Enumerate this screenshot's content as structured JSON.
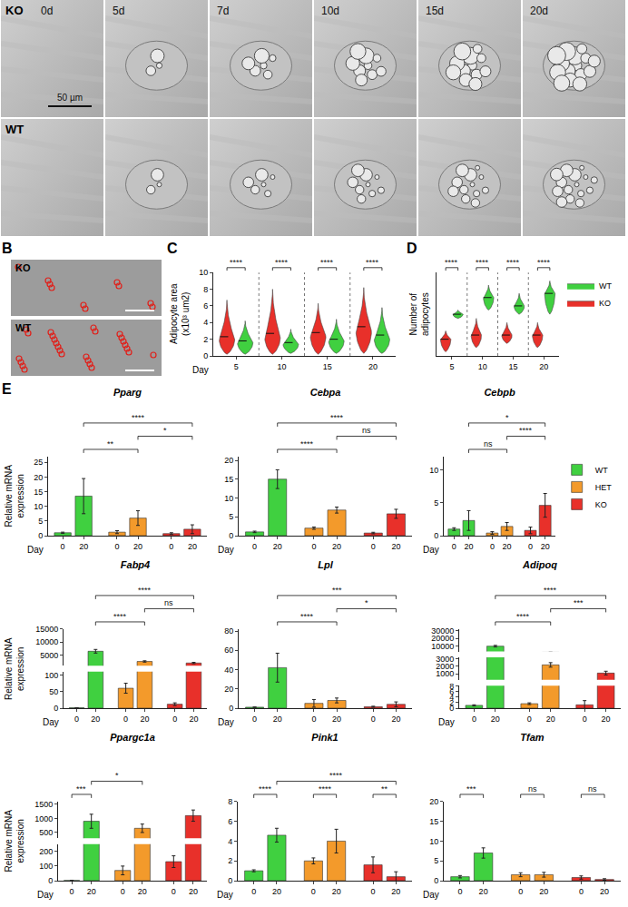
{
  "micrographs": {
    "A": {
      "rows": [
        "KO",
        "WT"
      ],
      "columns": [
        "0d",
        "5d",
        "7d",
        "10d",
        "15d",
        "20d"
      ],
      "scale_bar": "50 µm"
    },
    "B": {
      "panel": "B",
      "rows": [
        "KO",
        "WT"
      ]
    }
  },
  "chart_data": [
    {
      "panel": "C",
      "type": "violin",
      "x_title": "Day",
      "y_title": "Adipocyte area (x10³ um2)",
      "categories": [
        "5",
        "10",
        "15",
        "20"
      ],
      "ylim": [
        0,
        10
      ],
      "yticks": [
        0,
        2,
        4,
        6,
        8,
        10
      ],
      "series": [
        {
          "name": "KO",
          "color": "#e8302a",
          "min": [
            0.2,
            0.2,
            0.2,
            0.3
          ],
          "mode": [
            2.0,
            2.2,
            2.4,
            3.0
          ],
          "median": [
            2.3,
            2.7,
            2.8,
            3.5
          ],
          "max": [
            6.7,
            8.0,
            6.3,
            8.2
          ]
        },
        {
          "name": "WT",
          "color": "#40d040",
          "min": [
            0.2,
            0.3,
            0.3,
            0.3
          ],
          "mode": [
            1.6,
            1.4,
            1.8,
            2.0
          ],
          "median": [
            1.8,
            1.6,
            2.0,
            2.5
          ],
          "max": [
            4.2,
            3.2,
            4.4,
            5.8
          ]
        }
      ],
      "comparisons": [
        {
          "category": "5",
          "text": "****"
        },
        {
          "category": "10",
          "text": "****"
        },
        {
          "category": "15",
          "text": "****"
        },
        {
          "category": "20",
          "text": "****"
        }
      ]
    },
    {
      "panel": "D",
      "type": "violin",
      "y_title": "Number of adipocytes",
      "categories": [
        "5",
        "10",
        "15",
        "20"
      ],
      "ylim": [
        0,
        20
      ],
      "tick_labels": "x",
      "legend": "right",
      "series": [
        {
          "name": "KO",
          "color": "#e8302a",
          "min": [
            1,
            2,
            3,
            2
          ],
          "mode": [
            4,
            5,
            5,
            5
          ],
          "median": [
            4,
            5,
            5,
            5
          ],
          "max": [
            6,
            9,
            8,
            8
          ]
        },
        {
          "name": "WT",
          "color": "#40d040",
          "min": [
            9,
            11,
            10,
            10
          ],
          "mode": [
            10,
            14,
            12,
            15
          ],
          "median": [
            10,
            14,
            12,
            15
          ],
          "max": [
            11,
            17,
            15,
            18
          ]
        }
      ],
      "comparisons": [
        {
          "category": "5",
          "text": "****"
        },
        {
          "category": "10",
          "text": "****"
        },
        {
          "category": "15",
          "text": "****"
        },
        {
          "category": "20",
          "text": "****"
        }
      ]
    },
    {
      "panel": "E",
      "type": "bar",
      "title": "Pparg",
      "x_title": "Day",
      "y_title": "Relative mRNA expression",
      "categories": [
        "0",
        "20"
      ],
      "ylim": [
        0,
        27
      ],
      "yticks": [
        0,
        5,
        10,
        15,
        20,
        25
      ],
      "series": [
        {
          "name": "WT",
          "color": "#40d040",
          "values": [
            1.0,
            13.5
          ],
          "errors": [
            0.2,
            6.0
          ]
        },
        {
          "name": "HET",
          "color": "#f39a2b",
          "values": [
            1.2,
            6.0
          ],
          "errors": [
            0.5,
            2.5
          ]
        },
        {
          "name": "KO",
          "color": "#e8302a",
          "values": [
            0.7,
            2.2
          ],
          "errors": [
            0.3,
            1.5
          ]
        }
      ],
      "comparisons": [
        {
          "from": [
            "WT",
            "20"
          ],
          "to": [
            "HET",
            "20"
          ],
          "text": "**"
        },
        {
          "from": [
            "WT",
            "20"
          ],
          "to": [
            "KO",
            "20"
          ],
          "text": "****"
        },
        {
          "from": [
            "HET",
            "20"
          ],
          "to": [
            "KO",
            "20"
          ],
          "text": "*"
        }
      ]
    },
    {
      "type": "bar",
      "title": "Cebpa",
      "x_title": "Day",
      "categories": [
        "0",
        "20"
      ],
      "ylim": [
        0,
        21
      ],
      "yticks": [
        0,
        5,
        10,
        15,
        20
      ],
      "series": [
        {
          "name": "WT",
          "color": "#40d040",
          "values": [
            1.0,
            15.0
          ],
          "errors": [
            0.2,
            2.5
          ]
        },
        {
          "name": "HET",
          "color": "#f39a2b",
          "values": [
            2.0,
            6.8
          ],
          "errors": [
            0.3,
            0.8
          ]
        },
        {
          "name": "KO",
          "color": "#e8302a",
          "values": [
            0.7,
            5.8
          ],
          "errors": [
            0.2,
            1.2
          ]
        }
      ],
      "comparisons": [
        {
          "from": [
            "WT",
            "20"
          ],
          "to": [
            "HET",
            "20"
          ],
          "text": "****"
        },
        {
          "from": [
            "WT",
            "20"
          ],
          "to": [
            "KO",
            "20"
          ],
          "text": "****"
        },
        {
          "from": [
            "HET",
            "20"
          ],
          "to": [
            "KO",
            "20"
          ],
          "text": "ns"
        }
      ]
    },
    {
      "type": "bar",
      "title": "Cebpb",
      "x_title": "Day",
      "legend": "right",
      "categories": [
        "0",
        "20"
      ],
      "ylim": [
        0,
        12
      ],
      "yticks": [
        0,
        5,
        10
      ],
      "series": [
        {
          "name": "WT",
          "color": "#40d040",
          "values": [
            1.0,
            2.3
          ],
          "errors": [
            0.2,
            1.5
          ]
        },
        {
          "name": "HET",
          "color": "#f39a2b",
          "values": [
            0.4,
            1.4
          ],
          "errors": [
            0.2,
            0.6
          ]
        },
        {
          "name": "KO",
          "color": "#e8302a",
          "values": [
            0.8,
            4.6
          ],
          "errors": [
            0.5,
            1.8
          ]
        }
      ],
      "comparisons": [
        {
          "from": [
            "WT",
            "20"
          ],
          "to": [
            "HET",
            "20"
          ],
          "text": "ns"
        },
        {
          "from": [
            "WT",
            "20"
          ],
          "to": [
            "KO",
            "20"
          ],
          "text": "*"
        },
        {
          "from": [
            "HET",
            "20"
          ],
          "to": [
            "KO",
            "20"
          ],
          "text": "****"
        }
      ]
    },
    {
      "type": "bar",
      "title": "Fabp4",
      "x_title": "Day",
      "y_title": "Relative mRNA expression",
      "categories": [
        "0",
        "20"
      ],
      "segments": [
        {
          "ylim": [
            0,
            110
          ],
          "yticks": [
            0,
            50,
            100
          ]
        },
        {
          "ylim": [
            1000,
            15000
          ],
          "yticks": [
            5000,
            10000,
            15000
          ]
        }
      ],
      "series": [
        {
          "name": "WT",
          "color": "#40d040",
          "values": [
            1,
            6500
          ],
          "errors": [
            0.3,
            700
          ]
        },
        {
          "name": "HET",
          "color": "#f39a2b",
          "values": [
            60,
            2600
          ],
          "errors": [
            15,
            250
          ]
        },
        {
          "name": "KO",
          "color": "#e8302a",
          "values": [
            12,
            2000
          ],
          "errors": [
            4,
            250
          ]
        }
      ],
      "comparisons": [
        {
          "from": [
            "WT",
            "20"
          ],
          "to": [
            "HET",
            "20"
          ],
          "text": "****"
        },
        {
          "from": [
            "WT",
            "20"
          ],
          "to": [
            "KO",
            "20"
          ],
          "text": "****"
        },
        {
          "from": [
            "HET",
            "20"
          ],
          "to": [
            "KO",
            "20"
          ],
          "text": "ns"
        }
      ]
    },
    {
      "type": "bar",
      "title": "Lpl",
      "x_title": "Day",
      "categories": [
        "0",
        "20"
      ],
      "ylim": [
        0,
        82
      ],
      "yticks": [
        0,
        20,
        40,
        60,
        80
      ],
      "series": [
        {
          "name": "WT",
          "color": "#40d040",
          "values": [
            1,
            42
          ],
          "errors": [
            0.2,
            15
          ]
        },
        {
          "name": "HET",
          "color": "#f39a2b",
          "values": [
            5,
            8
          ],
          "errors": [
            4,
            2.5
          ]
        },
        {
          "name": "KO",
          "color": "#e8302a",
          "values": [
            1.5,
            4
          ],
          "errors": [
            0.5,
            2.5
          ]
        }
      ],
      "comparisons": [
        {
          "from": [
            "WT",
            "20"
          ],
          "to": [
            "HET",
            "20"
          ],
          "text": "****"
        },
        {
          "from": [
            "WT",
            "20"
          ],
          "to": [
            "KO",
            "20"
          ],
          "text": "***"
        },
        {
          "from": [
            "HET",
            "20"
          ],
          "to": [
            "KO",
            "20"
          ],
          "text": "*"
        }
      ]
    },
    {
      "type": "bar",
      "title": "Adipoq",
      "x_title": "Day",
      "categories": [
        "0",
        "20"
      ],
      "segments": [
        {
          "ylim": [
            0,
            8
          ],
          "yticks": [
            0,
            2,
            4,
            6,
            8
          ]
        },
        {
          "ylim": [
            200,
            3200
          ],
          "yticks": [
            1000,
            2000,
            3000
          ]
        },
        {
          "ylim": [
            3200,
            32000
          ],
          "yticks": [
            10000,
            20000,
            30000
          ]
        }
      ],
      "series": [
        {
          "name": "WT",
          "color": "#40d040",
          "values": [
            1.0,
            10000
          ],
          "errors": [
            0.2,
            1000
          ]
        },
        {
          "name": "HET",
          "color": "#f39a2b",
          "values": [
            1.6,
            2200
          ],
          "errors": [
            0.3,
            300
          ]
        },
        {
          "name": "KO",
          "color": "#e8302a",
          "values": [
            1.2,
            1100
          ],
          "errors": [
            1.5,
            250
          ]
        }
      ],
      "comparisons": [
        {
          "from": [
            "WT",
            "20"
          ],
          "to": [
            "HET",
            "20"
          ],
          "text": "****"
        },
        {
          "from": [
            "WT",
            "20"
          ],
          "to": [
            "KO",
            "20"
          ],
          "text": "****"
        },
        {
          "from": [
            "HET",
            "20"
          ],
          "to": [
            "KO",
            "20"
          ],
          "text": "***"
        }
      ]
    },
    {
      "type": "bar",
      "title": "Ppargc1a",
      "x_title": "Day",
      "y_title": "Relative mRNA expression",
      "categories": [
        "0",
        "20"
      ],
      "segments": [
        {
          "ylim": [
            0,
            250
          ],
          "yticks": [
            0,
            100,
            200
          ]
        },
        {
          "ylim": [
            300,
            1600
          ],
          "yticks": [
            500,
            1000,
            1500
          ]
        }
      ],
      "series": [
        {
          "name": "WT",
          "color": "#40d040",
          "values": [
            1,
            900
          ],
          "errors": [
            0.3,
            250
          ]
        },
        {
          "name": "HET",
          "color": "#f39a2b",
          "values": [
            70,
            650
          ],
          "errors": [
            30,
            150
          ]
        },
        {
          "name": "KO",
          "color": "#e8302a",
          "values": [
            130,
            1100
          ],
          "errors": [
            40,
            200
          ]
        }
      ],
      "comparisons": [
        {
          "from": [
            "WT",
            "0"
          ],
          "to": [
            "WT",
            "20"
          ],
          "text": "***"
        },
        {
          "from": [
            "WT",
            "20"
          ],
          "to": [
            "HET",
            "20"
          ],
          "text": "*"
        }
      ]
    },
    {
      "type": "bar",
      "title": "Pink1",
      "x_title": "Day",
      "categories": [
        "0",
        "20"
      ],
      "ylim": [
        0,
        8
      ],
      "yticks": [
        0,
        2,
        4,
        6,
        8
      ],
      "series": [
        {
          "name": "WT",
          "color": "#40d040",
          "values": [
            1.0,
            4.6
          ],
          "errors": [
            0.1,
            0.7
          ]
        },
        {
          "name": "HET",
          "color": "#f39a2b",
          "values": [
            2.0,
            4.0
          ],
          "errors": [
            0.3,
            1.2
          ]
        },
        {
          "name": "KO",
          "color": "#e8302a",
          "values": [
            1.6,
            0.4
          ],
          "errors": [
            0.8,
            0.5
          ]
        }
      ],
      "comparisons": [
        {
          "from": [
            "WT",
            "0"
          ],
          "to": [
            "WT",
            "20"
          ],
          "text": "****"
        },
        {
          "from": [
            "HET",
            "0"
          ],
          "to": [
            "HET",
            "20"
          ],
          "text": "****"
        },
        {
          "from": [
            "WT",
            "20"
          ],
          "to": [
            "KO",
            "20"
          ],
          "text": "****"
        },
        {
          "from": [
            "KO",
            "0"
          ],
          "to": [
            "KO",
            "20"
          ],
          "text": "**"
        }
      ]
    },
    {
      "type": "bar",
      "title": "Tfam",
      "x_title": "Day",
      "categories": [
        "0",
        "20"
      ],
      "ylim": [
        0,
        20
      ],
      "yticks": [
        0,
        5,
        10,
        15,
        20
      ],
      "series": [
        {
          "name": "WT",
          "color": "#40d040",
          "values": [
            1.0,
            7.0
          ],
          "errors": [
            0.3,
            1.3
          ]
        },
        {
          "name": "HET",
          "color": "#f39a2b",
          "values": [
            1.5,
            1.5
          ],
          "errors": [
            0.5,
            0.6
          ]
        },
        {
          "name": "KO",
          "color": "#e8302a",
          "values": [
            0.8,
            0.3
          ],
          "errors": [
            0.4,
            0.2
          ]
        }
      ],
      "comparisons": [
        {
          "from": [
            "WT",
            "0"
          ],
          "to": [
            "WT",
            "20"
          ],
          "text": "***"
        },
        {
          "from": [
            "HET",
            "0"
          ],
          "to": [
            "HET",
            "20"
          ],
          "text": "ns"
        },
        {
          "from": [
            "KO",
            "0"
          ],
          "to": [
            "KO",
            "20"
          ],
          "text": "ns"
        }
      ]
    }
  ]
}
